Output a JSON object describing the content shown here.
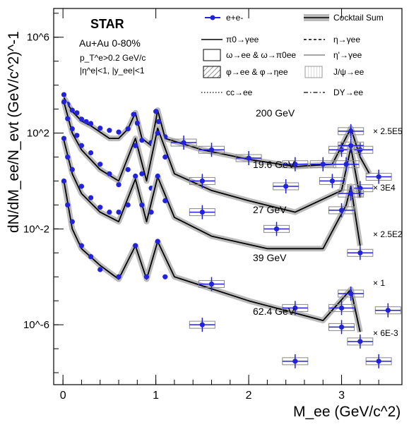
{
  "chart_data": {
    "type": "line",
    "title": "STAR",
    "annotations": {
      "system": "Au+Au 0-80%",
      "cut_pt": "p_T^e>0.2 GeV/c",
      "cut_eta": "|η^e|<1, |y_ee|<1"
    },
    "xlabel": "M_ee (GeV/c^2)",
    "ylabel": "dN/dM_ee/N_evt (GeV/c^2)^-1",
    "x_ticks": [
      "0",
      "1",
      "2",
      "3"
    ],
    "y_ticks": [
      "10^-6",
      "10^-2",
      "10^2",
      "10^6"
    ],
    "xlim": [
      -0.1,
      3.65
    ],
    "ylim_log10": [
      -8.5,
      7.2
    ],
    "y_scale": "log",
    "legend": [
      {
        "label": "e+e-",
        "style": "data"
      },
      {
        "label": "Cocktail Sum",
        "style": "gray band"
      },
      {
        "label": "π0→γee",
        "style": "solid"
      },
      {
        "label": "η→γee",
        "style": "dashed"
      },
      {
        "label": "ω→ee & ω→π0ee",
        "style": "box"
      },
      {
        "label": "η'→γee",
        "style": "gray solid"
      },
      {
        "label": "φ→ee & φ→ηee",
        "style": "hatched box"
      },
      {
        "label": "J/ψ→ee",
        "style": "light hatched box"
      },
      {
        "label": "cc→ee",
        "style": "dotted"
      },
      {
        "label": "DY→ee",
        "style": "dash-dot"
      }
    ],
    "series": [
      {
        "name": "200 GeV",
        "scale": "× 2.5E5",
        "points": [
          [
            0.01,
            4000
          ],
          [
            0.05,
            1600
          ],
          [
            0.1,
            900
          ],
          [
            0.15,
            700
          ],
          [
            0.2,
            380
          ],
          [
            0.25,
            300
          ],
          [
            0.3,
            250
          ],
          [
            0.4,
            160
          ],
          [
            0.5,
            130
          ],
          [
            0.6,
            110
          ],
          [
            0.7,
            150
          ],
          [
            0.76,
            600
          ],
          [
            0.8,
            260
          ],
          [
            0.85,
            50
          ],
          [
            0.95,
            40
          ],
          [
            1.0,
            800
          ],
          [
            1.03,
            300
          ],
          [
            1.1,
            70
          ],
          [
            1.3,
            40
          ],
          [
            1.6,
            20
          ],
          [
            2.0,
            9
          ],
          [
            2.5,
            5
          ],
          [
            2.8,
            5
          ],
          [
            3.0,
            20
          ],
          [
            3.1,
            120
          ],
          [
            3.2,
            20
          ],
          [
            3.4,
            1.5
          ]
        ],
        "cocktail": [
          [
            0.01,
            3000
          ],
          [
            0.1,
            800
          ],
          [
            0.2,
            320
          ],
          [
            0.3,
            200
          ],
          [
            0.4,
            110
          ],
          [
            0.5,
            60
          ],
          [
            0.6,
            60
          ],
          [
            0.7,
            150
          ],
          [
            0.78,
            700
          ],
          [
            0.85,
            60
          ],
          [
            0.95,
            30
          ],
          [
            1.02,
            900
          ],
          [
            1.1,
            60
          ],
          [
            1.5,
            20
          ],
          [
            2.0,
            8
          ],
          [
            2.5,
            4
          ],
          [
            2.9,
            5
          ],
          [
            3.1,
            160
          ],
          [
            3.2,
            10
          ],
          [
            3.3,
            2
          ]
        ]
      },
      {
        "name": "19.6 GeV",
        "scale": "× 3E4",
        "points": [
          [
            0.01,
            2000
          ],
          [
            0.05,
            400
          ],
          [
            0.1,
            150
          ],
          [
            0.15,
            80
          ],
          [
            0.2,
            30
          ],
          [
            0.3,
            15
          ],
          [
            0.4,
            5
          ],
          [
            0.5,
            2
          ],
          [
            0.6,
            0.7
          ],
          [
            0.7,
            3
          ],
          [
            0.78,
            30
          ],
          [
            0.85,
            2
          ],
          [
            0.95,
            0.5
          ],
          [
            1.02,
            100
          ],
          [
            1.1,
            10
          ],
          [
            1.5,
            1
          ],
          [
            2.4,
            0.6
          ],
          [
            2.9,
            1
          ],
          [
            3.05,
            5
          ],
          [
            3.1,
            30
          ],
          [
            3.2,
            0.5
          ]
        ],
        "cocktail": [
          [
            0.01,
            2000
          ],
          [
            0.1,
            100
          ],
          [
            0.2,
            20
          ],
          [
            0.4,
            3
          ],
          [
            0.6,
            1
          ],
          [
            0.78,
            60
          ],
          [
            0.9,
            1
          ],
          [
            1.02,
            160
          ],
          [
            1.2,
            2
          ],
          [
            1.6,
            0.4
          ],
          [
            2.0,
            0.15
          ],
          [
            2.5,
            0.05
          ],
          [
            3.0,
            0.4
          ],
          [
            3.1,
            25
          ],
          [
            3.2,
            0.2
          ]
        ]
      },
      {
        "name": "27 GeV",
        "scale": "× 2.5E2",
        "points": [
          [
            0.01,
            60
          ],
          [
            0.05,
            10
          ],
          [
            0.1,
            3
          ],
          [
            0.2,
            0.6
          ],
          [
            0.3,
            0.2
          ],
          [
            0.4,
            0.08
          ],
          [
            0.5,
            0.05
          ],
          [
            0.6,
            0.05
          ],
          [
            0.7,
            0.1
          ],
          [
            0.78,
            1.6
          ],
          [
            0.85,
            0.1
          ],
          [
            0.95,
            0.05
          ],
          [
            1.02,
            1.6
          ],
          [
            1.1,
            0.15
          ],
          [
            1.5,
            0.05
          ],
          [
            2.3,
            0.01
          ],
          [
            3.0,
            0.06
          ],
          [
            3.1,
            0.3
          ],
          [
            3.2,
            0.001
          ]
        ],
        "cocktail": [
          [
            0.01,
            50
          ],
          [
            0.1,
            2
          ],
          [
            0.2,
            0.3
          ],
          [
            0.4,
            0.05
          ],
          [
            0.6,
            0.02
          ],
          [
            0.78,
            1.2
          ],
          [
            0.9,
            0.02
          ],
          [
            1.02,
            1.5
          ],
          [
            1.2,
            0.03
          ],
          [
            1.6,
            0.005
          ],
          [
            2.2,
            0.0015
          ],
          [
            2.8,
            0.0015
          ],
          [
            3.05,
            0.1
          ],
          [
            3.1,
            0.6
          ],
          [
            3.2,
            0.002
          ]
        ]
      },
      {
        "name": "39 GeV",
        "scale": "× 1",
        "points": [
          [
            0.01,
            1
          ],
          [
            0.05,
            0.1
          ],
          [
            0.1,
            0.02
          ],
          [
            0.2,
            0.002
          ],
          [
            0.3,
            0.0007
          ],
          [
            0.4,
            0.0002
          ],
          [
            0.6,
            0.0001
          ],
          [
            0.78,
            0.002
          ],
          [
            0.9,
            0.0001
          ],
          [
            1.02,
            0.003
          ],
          [
            1.1,
            0.0001
          ],
          [
            1.6,
            5e-05
          ],
          [
            2.5,
            5e-06
          ],
          [
            3.0,
            5e-06
          ],
          [
            3.1,
            2e-05
          ],
          [
            3.5,
            4e-06
          ]
        ],
        "cocktail": [
          [
            0.01,
            1
          ],
          [
            0.1,
            0.01
          ],
          [
            0.2,
            0.0015
          ],
          [
            0.4,
            0.0003
          ],
          [
            0.6,
            8e-05
          ],
          [
            0.78,
            0.002
          ],
          [
            0.9,
            8e-05
          ],
          [
            1.02,
            0.003
          ],
          [
            1.2,
            0.0001
          ],
          [
            2.0,
            1e-05
          ],
          [
            2.8,
            1.5e-06
          ],
          [
            3.1,
            3e-05
          ],
          [
            3.2,
            5e-07
          ]
        ]
      },
      {
        "name": "62.4 GeV",
        "scale": "× 6E-3",
        "points": [
          [
            1.5,
            1e-06
          ],
          [
            2.5,
            3e-08
          ],
          [
            3.0,
            8e-07
          ],
          [
            3.2,
            2e-07
          ],
          [
            3.4,
            3e-08
          ]
        ],
        "cocktail": []
      }
    ]
  }
}
